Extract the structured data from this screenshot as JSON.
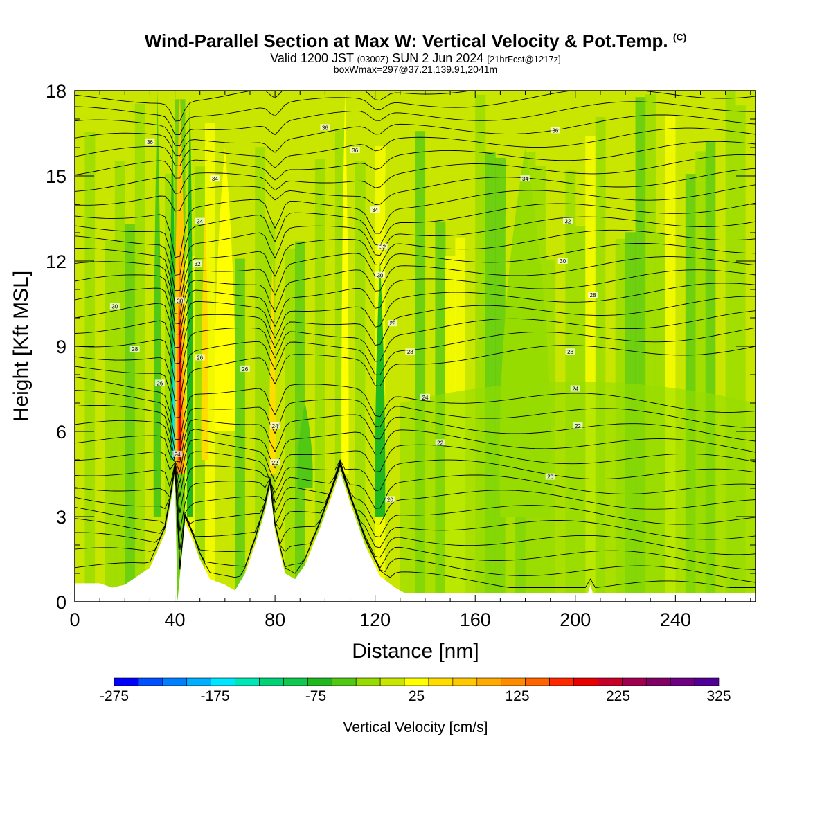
{
  "header": {
    "title_main": "Wind-Parallel Section at Max W: Vertical Velocity & Pot.Temp.",
    "title_mark": "(C)",
    "valid_prefix": "Valid 1200 JST",
    "valid_utc": "(0300Z)",
    "valid_date": "SUN 2 Jun 2024",
    "valid_fcst": "[21hrFcst@1217z]",
    "box_info": "boxWmax=297@37.21,139.91,2041m"
  },
  "chart_data": {
    "type": "heatmap",
    "xlabel": "Distance [nm]",
    "ylabel": "Height [Kft MSL]",
    "xlim": [
      0,
      272
    ],
    "ylim": [
      0,
      18
    ],
    "x_ticks": [
      "0",
      "40",
      "80",
      "120",
      "160",
      "200",
      "240"
    ],
    "y_ticks": [
      "0",
      "3",
      "6",
      "9",
      "12",
      "15",
      "18"
    ],
    "colorbar": {
      "label": "Vertical Velocity [cm/s]",
      "tick_labels": [
        "-275",
        "-175",
        "-75",
        "25",
        "125",
        "225",
        "325"
      ],
      "min": -275,
      "max": 325,
      "colors": [
        "#0000ff",
        "#0050ff",
        "#0080ff",
        "#00b0ff",
        "#00e6ff",
        "#00e6b4",
        "#00d278",
        "#10c850",
        "#20b81e",
        "#50c814",
        "#96dc00",
        "#c8e600",
        "#ffff00",
        "#ffdc00",
        "#ffc800",
        "#ffaa00",
        "#ff8c00",
        "#ff6400",
        "#ff2800",
        "#e60000",
        "#c80028",
        "#a00050",
        "#820064",
        "#6e0082",
        "#500096"
      ]
    },
    "terrain_kft": [
      [
        0,
        0.65
      ],
      [
        10,
        0.65
      ],
      [
        15,
        0.5
      ],
      [
        20,
        0.6
      ],
      [
        30,
        1.2
      ],
      [
        36,
        2.4
      ],
      [
        39,
        3.8
      ],
      [
        40,
        4.5
      ],
      [
        41,
        0
      ],
      [
        44,
        2.8
      ],
      [
        47,
        2.2
      ],
      [
        50,
        1.5
      ],
      [
        54,
        0.8
      ],
      [
        60,
        0.6
      ],
      [
        64,
        0.4
      ],
      [
        68,
        1.0
      ],
      [
        72,
        2.0
      ],
      [
        76,
        3.2
      ],
      [
        78,
        4.0
      ],
      [
        80,
        2.5
      ],
      [
        84,
        1.0
      ],
      [
        88,
        0.8
      ],
      [
        92,
        1.3
      ],
      [
        98,
        2.6
      ],
      [
        103,
        3.8
      ],
      [
        106,
        4.6
      ],
      [
        110,
        3.5
      ],
      [
        116,
        2.0
      ],
      [
        122,
        0.9
      ],
      [
        128,
        0.5
      ],
      [
        132,
        0.3
      ],
      [
        205,
        0.3
      ],
      [
        206,
        0.6
      ],
      [
        207,
        0.3
      ],
      [
        272,
        0.3
      ]
    ],
    "theta_labels": [
      {
        "x": 30,
        "y": 16.2,
        "text": "36"
      },
      {
        "x": 100,
        "y": 16.7,
        "text": "36"
      },
      {
        "x": 192,
        "y": 16.6,
        "text": "36"
      },
      {
        "x": 112,
        "y": 15.9,
        "text": "36"
      },
      {
        "x": 56,
        "y": 14.9,
        "text": "34"
      },
      {
        "x": 180,
        "y": 14.9,
        "text": "34"
      },
      {
        "x": 120,
        "y": 13.8,
        "text": "34"
      },
      {
        "x": 50,
        "y": 13.4,
        "text": "34"
      },
      {
        "x": 197,
        "y": 13.4,
        "text": "32"
      },
      {
        "x": 123,
        "y": 12.5,
        "text": "32"
      },
      {
        "x": 49,
        "y": 11.9,
        "text": "32"
      },
      {
        "x": 195,
        "y": 12.0,
        "text": "30"
      },
      {
        "x": 122,
        "y": 11.5,
        "text": "30"
      },
      {
        "x": 42,
        "y": 10.6,
        "text": "30"
      },
      {
        "x": 16,
        "y": 10.4,
        "text": "30"
      },
      {
        "x": 207,
        "y": 10.8,
        "text": "28"
      },
      {
        "x": 127,
        "y": 9.8,
        "text": "28"
      },
      {
        "x": 134,
        "y": 8.8,
        "text": "28"
      },
      {
        "x": 198,
        "y": 8.8,
        "text": "28"
      },
      {
        "x": 24,
        "y": 8.9,
        "text": "28"
      },
      {
        "x": 50,
        "y": 8.6,
        "text": "26"
      },
      {
        "x": 68,
        "y": 8.2,
        "text": "26"
      },
      {
        "x": 34,
        "y": 7.7,
        "text": "26"
      },
      {
        "x": 200,
        "y": 7.5,
        "text": "24"
      },
      {
        "x": 140,
        "y": 7.2,
        "text": "24"
      },
      {
        "x": 80,
        "y": 6.2,
        "text": "24"
      },
      {
        "x": 41,
        "y": 5.2,
        "text": "24"
      },
      {
        "x": 146,
        "y": 5.6,
        "text": "22"
      },
      {
        "x": 201,
        "y": 6.2,
        "text": "22"
      },
      {
        "x": 80,
        "y": 4.9,
        "text": "22"
      },
      {
        "x": 190,
        "y": 4.4,
        "text": "20"
      },
      {
        "x": 126,
        "y": 3.6,
        "text": "20"
      }
    ]
  }
}
